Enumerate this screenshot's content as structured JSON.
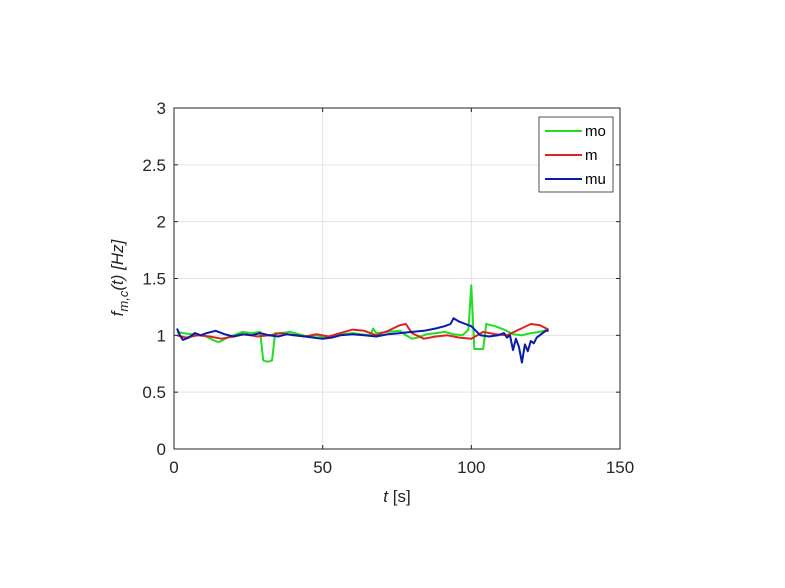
{
  "chart_data": {
    "type": "line",
    "title": "",
    "xlabel_italic": "t",
    "xlabel_rest": " [s]",
    "ylabel_f": "f",
    "ylabel_sub": "m,c",
    "ylabel_rest": "(t) [Hz]",
    "xlim": [
      0,
      150
    ],
    "ylim": [
      0,
      3
    ],
    "xticks": [
      "0",
      "50",
      "100",
      "150"
    ],
    "yticks": [
      "0",
      "0.5",
      "1",
      "1.5",
      "2",
      "2.5",
      "3"
    ],
    "grid": true,
    "legend_position": "top-right",
    "series": [
      {
        "name": "mo",
        "color": "#22dd22",
        "x": [
          1,
          3,
          6,
          10,
          13,
          15,
          18,
          20,
          23,
          26,
          29,
          30,
          31,
          32,
          33,
          34,
          36,
          39,
          42,
          45,
          48,
          51,
          54,
          57,
          60,
          63,
          66,
          67,
          68,
          72,
          76,
          78,
          80,
          82,
          85,
          88,
          91,
          94,
          97,
          99,
          100,
          101,
          102,
          104,
          105,
          108,
          111,
          114,
          117,
          120,
          123,
          126
        ],
        "y": [
          1.03,
          1.02,
          1.01,
          1.0,
          0.96,
          0.94,
          0.98,
          1.0,
          1.03,
          1.02,
          1.03,
          0.78,
          0.77,
          0.77,
          0.78,
          1.02,
          1.02,
          1.03,
          1.01,
          0.99,
          1.0,
          0.98,
          1.0,
          1.01,
          1.02,
          1.01,
          1.0,
          1.06,
          1.02,
          1.03,
          1.04,
          1.0,
          0.97,
          0.98,
          1.01,
          1.02,
          1.03,
          1.01,
          1.0,
          1.05,
          1.44,
          0.88,
          0.88,
          0.88,
          1.1,
          1.08,
          1.05,
          1.01,
          1.0,
          1.02,
          1.03,
          1.05
        ]
      },
      {
        "name": "m",
        "color": "#dd2222",
        "x": [
          1,
          4,
          8,
          12,
          16,
          20,
          24,
          28,
          32,
          36,
          40,
          44,
          48,
          52,
          56,
          60,
          64,
          68,
          72,
          76,
          78,
          80,
          84,
          88,
          92,
          96,
          100,
          104,
          108,
          112,
          116,
          120,
          123,
          126
        ],
        "y": [
          1.0,
          0.98,
          1.0,
          0.99,
          0.97,
          0.99,
          1.01,
          0.99,
          1.0,
          1.02,
          1.0,
          0.99,
          1.01,
          0.99,
          1.02,
          1.05,
          1.04,
          1.0,
          1.04,
          1.09,
          1.1,
          1.02,
          0.97,
          0.99,
          1.0,
          0.98,
          0.97,
          1.03,
          1.01,
          1.0,
          1.05,
          1.1,
          1.09,
          1.05
        ]
      },
      {
        "name": "mu",
        "color": "#0a1aaa",
        "x": [
          1,
          2,
          3,
          5,
          7,
          9,
          11,
          14,
          17,
          20,
          23,
          26,
          29,
          32,
          35,
          38,
          41,
          44,
          47,
          50,
          53,
          56,
          60,
          64,
          68,
          72,
          76,
          80,
          84,
          88,
          91,
          93,
          94,
          96,
          98,
          100,
          103,
          106,
          109,
          111,
          112,
          113,
          114,
          115,
          116,
          117,
          118,
          119,
          120,
          121,
          122,
          123,
          124,
          125,
          126
        ],
        "y": [
          1.06,
          1.0,
          0.96,
          0.98,
          1.02,
          1.0,
          1.02,
          1.04,
          1.01,
          0.99,
          1.01,
          1.0,
          1.02,
          1.0,
          0.99,
          1.01,
          1.0,
          0.99,
          0.98,
          0.97,
          0.98,
          1.0,
          1.01,
          1.0,
          0.99,
          1.01,
          1.02,
          1.03,
          1.04,
          1.06,
          1.08,
          1.1,
          1.15,
          1.12,
          1.1,
          1.08,
          1.0,
          0.99,
          1.0,
          1.02,
          0.98,
          1.0,
          0.87,
          0.97,
          0.9,
          0.76,
          0.92,
          0.86,
          0.95,
          0.93,
          0.98,
          1.0,
          1.02,
          1.04,
          1.04
        ]
      }
    ]
  }
}
